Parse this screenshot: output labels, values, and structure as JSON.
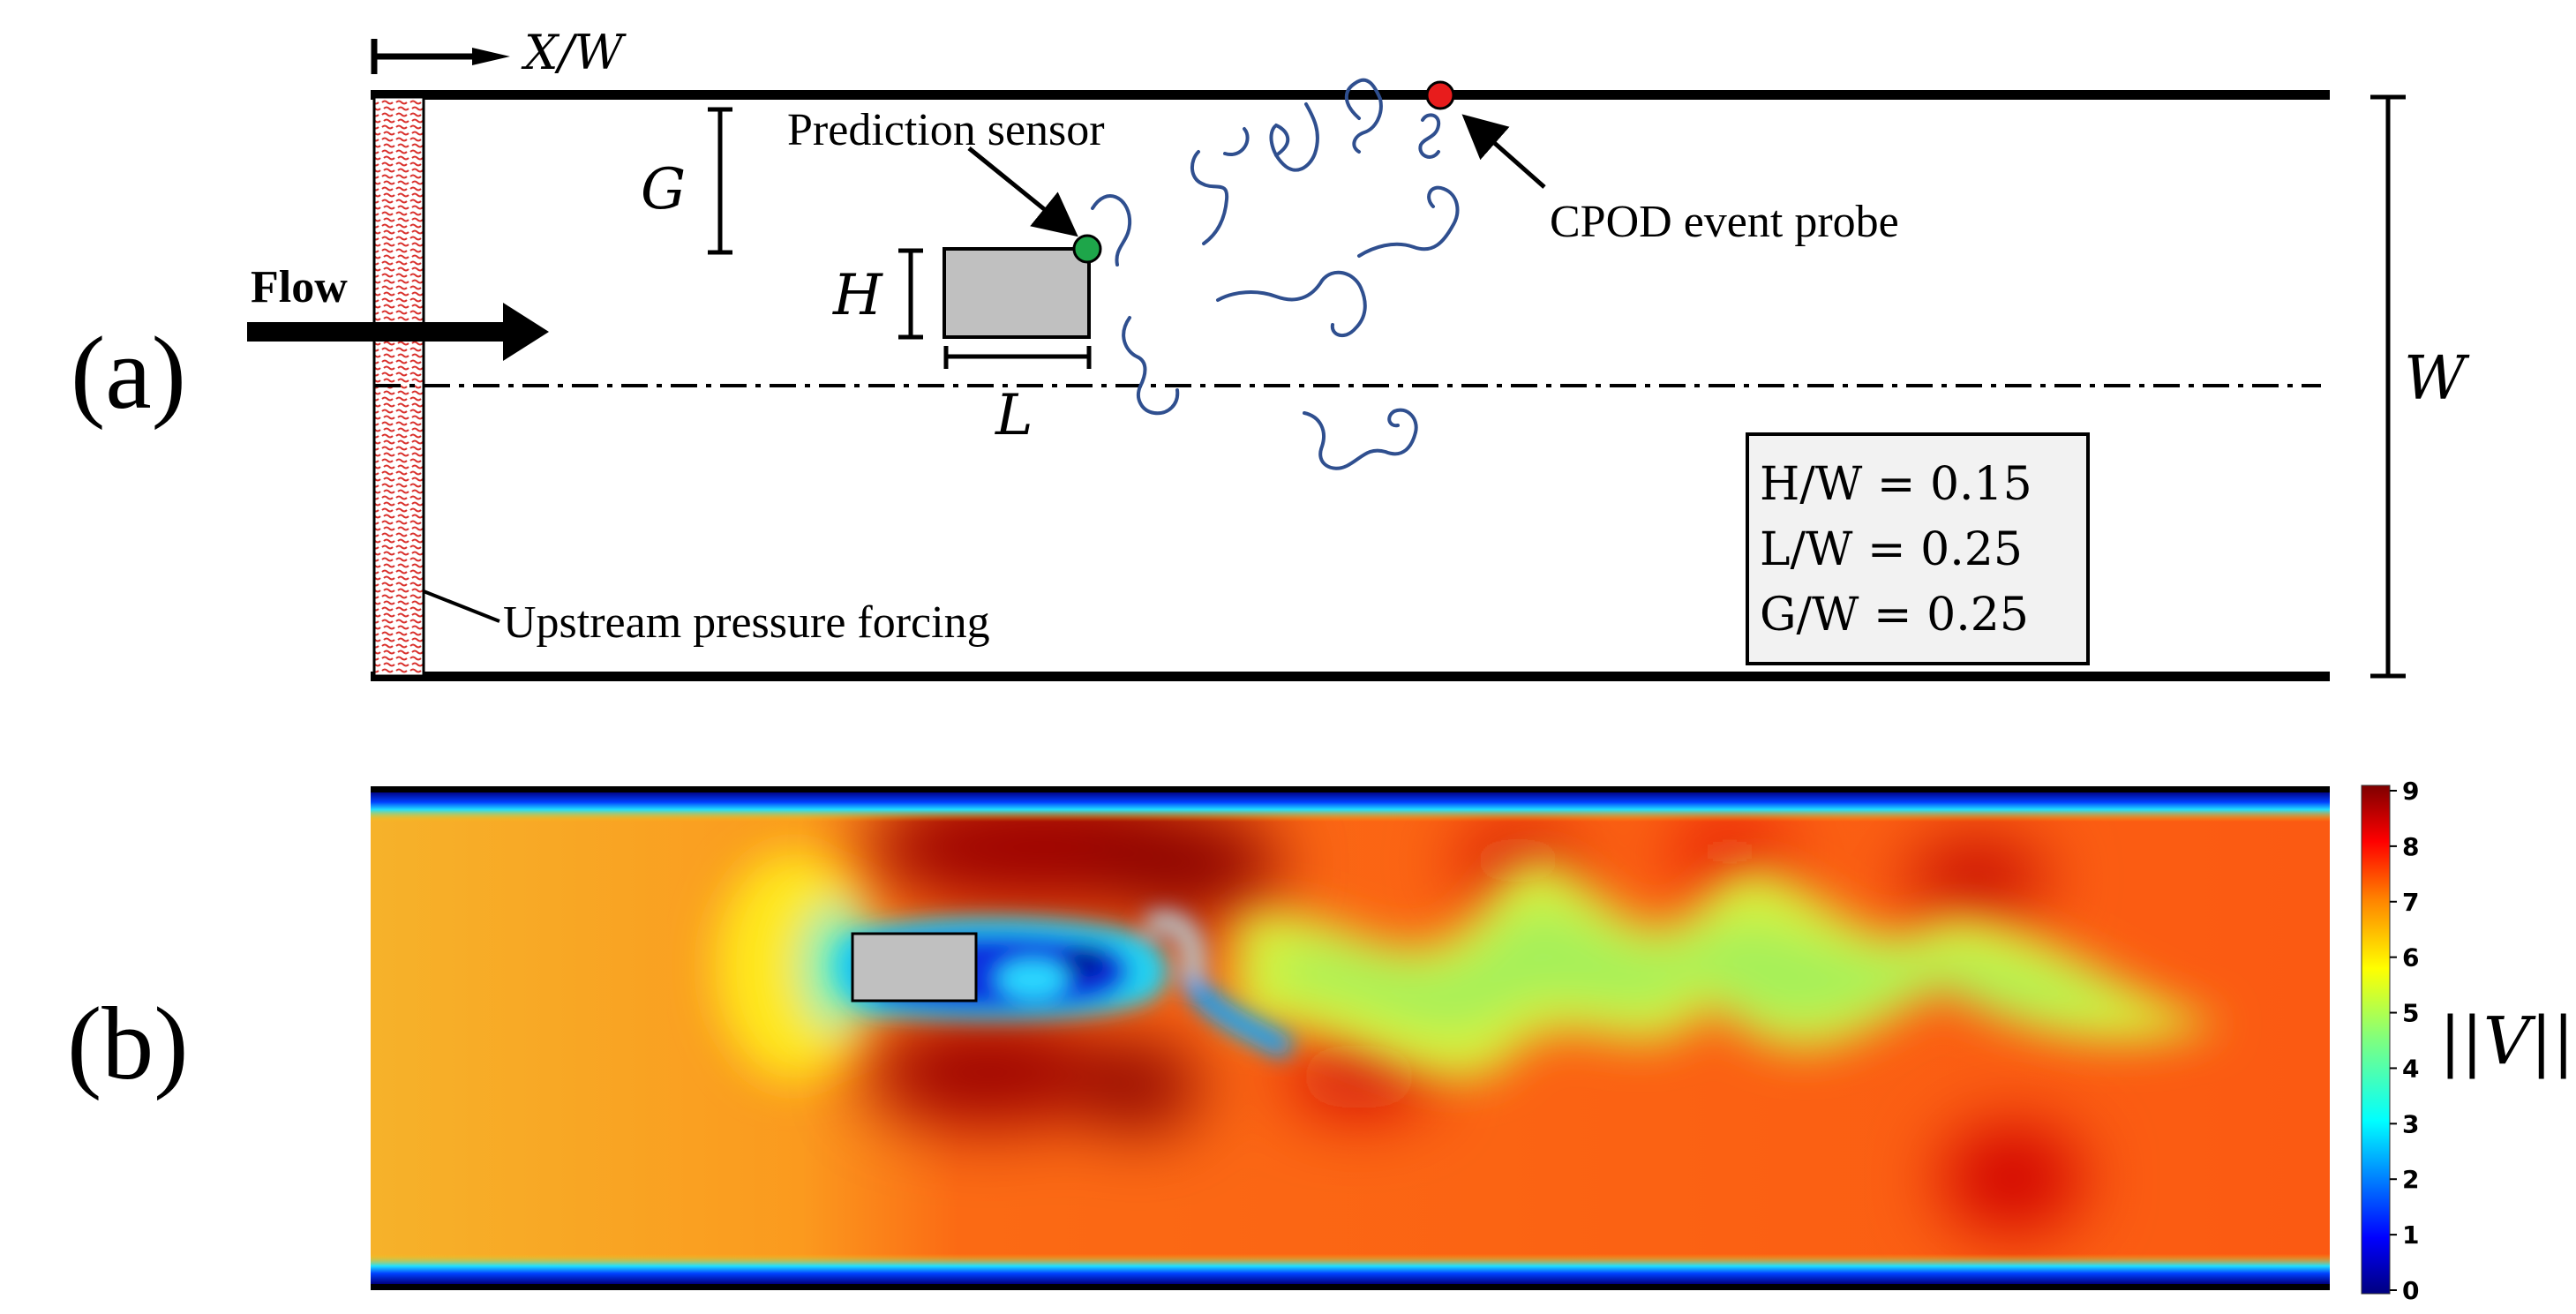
{
  "panel_a": {
    "label": "(a)",
    "axis_label": "X/W",
    "flow_label": "Flow",
    "dim_G": "G",
    "dim_H": "H",
    "dim_L": "L",
    "dim_W": "W",
    "prediction_sensor": "Prediction sensor",
    "cpod_probe": "CPOD event probe",
    "upstream_forcing": "Upstream pressure forcing",
    "ratios": [
      "H/W = 0.15",
      "L/W = 0.25",
      "G/W = 0.25"
    ],
    "colors": {
      "prediction_sensor": "#1ea64a",
      "cpod_probe": "#e81c1c",
      "body": "#c0c0c0",
      "vortex_lines": "#2f4f8f",
      "forcing": "#d9302c"
    }
  },
  "panel_b": {
    "label": "(b)",
    "colorbar": {
      "title": "||V||",
      "ticks": [
        "0",
        "1",
        "2",
        "3",
        "4",
        "5",
        "6",
        "7",
        "8",
        "9"
      ],
      "range": [
        0,
        9
      ],
      "colormap": "jet"
    },
    "body_color": "#c0c0c0"
  }
}
